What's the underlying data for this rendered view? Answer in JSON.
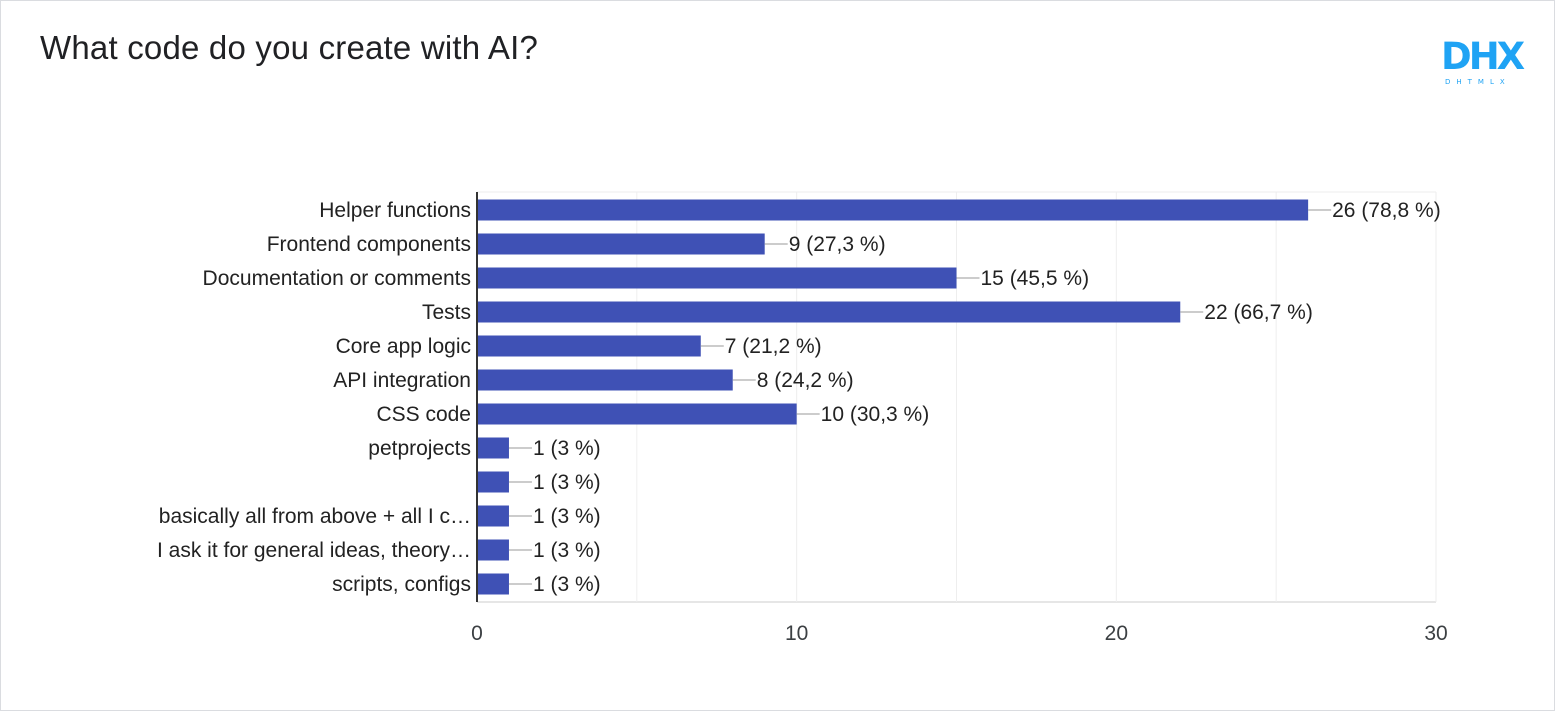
{
  "title": "What code do you create with AI?",
  "logo": {
    "text": "DHX",
    "subtext": "DHTMLX",
    "color": "#1fa3f4"
  },
  "chart_data": {
    "type": "bar",
    "orientation": "horizontal",
    "title": "What code do you create with AI?",
    "categories": [
      "Helper functions",
      "Frontend components",
      "Documentation or comments",
      "Tests",
      "Core app logic",
      "API integration",
      "CSS code",
      "petprojects",
      "",
      "basically all from above + all I c…",
      "I ask it for general ideas, theory…",
      "scripts, configs"
    ],
    "values": [
      26,
      9,
      15,
      22,
      7,
      8,
      10,
      1,
      1,
      1,
      1,
      1
    ],
    "data_labels": [
      "26 (78,8 %)",
      "9 (27,3 %)",
      "15 (45,5 %)",
      "22 (66,7 %)",
      "7 (21,2 %)",
      "8 (24,2 %)",
      "10 (30,3 %)",
      "1 (3 %)",
      "1 (3 %)",
      "1 (3 %)",
      "1 (3 %)",
      "1 (3 %)"
    ],
    "xlim": [
      0,
      30
    ],
    "x_ticks": [
      0,
      10,
      20,
      30
    ],
    "bar_color": "#3f51b5",
    "grid": true,
    "legend": "none"
  }
}
